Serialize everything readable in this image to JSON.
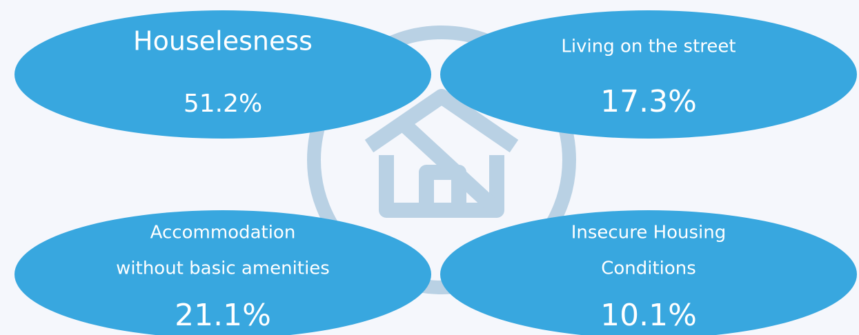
{
  "items": [
    {
      "lines": [
        "Houselesness"
      ],
      "value": "51.2%"
    },
    {
      "lines": [
        "Living on the street"
      ],
      "value": "17.3%"
    },
    {
      "lines": [
        "Accommodation",
        "without basic amenities"
      ],
      "value": "21.1%"
    },
    {
      "lines": [
        "Insecure Housing",
        "Conditions"
      ],
      "value": "10.1%"
    }
  ]
}
